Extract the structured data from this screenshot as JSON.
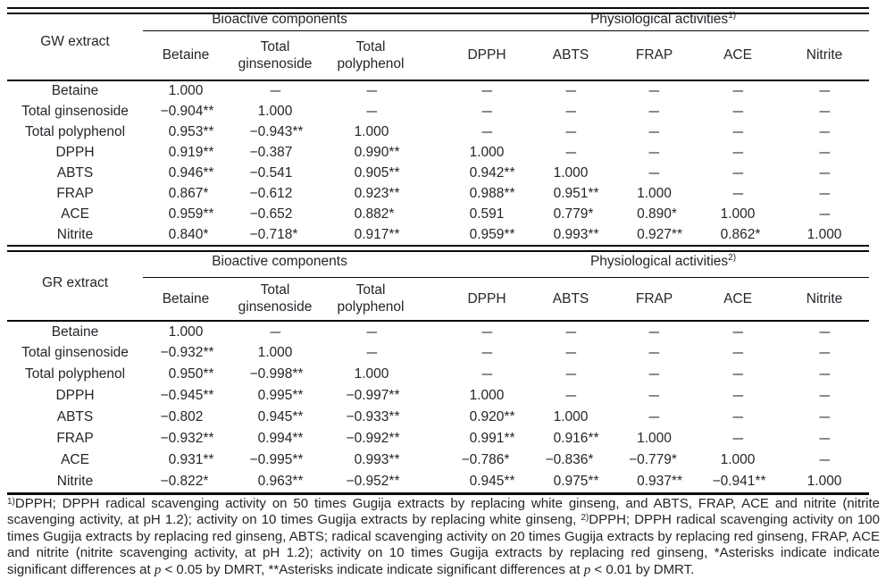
{
  "colors": {
    "text": "#24262b",
    "rule": "#0a0a0a",
    "background": "#ffffff"
  },
  "tables": [
    {
      "stub_label": "GW extract",
      "groups": [
        {
          "label": "Bioactive components",
          "sup": ""
        },
        {
          "label": "Physiological activities",
          "sup": "1)"
        }
      ],
      "col_headers": [
        "Betaine",
        "Total ginsenoside",
        "Total polyphenol",
        "DPPH",
        "ABTS",
        "FRAP",
        "ACE",
        "Nitrite"
      ],
      "rows": [
        {
          "label": "Betaine",
          "values": [
            "1.000",
            "–",
            "–",
            "–",
            "–",
            "–",
            "–",
            "–"
          ]
        },
        {
          "label": "Total ginsenoside",
          "values": [
            "−0.904**",
            "1.000",
            "–",
            "–",
            "–",
            "–",
            "–",
            "–"
          ]
        },
        {
          "label": "Total polyphenol",
          "values": [
            "0.953**",
            "−0.943**",
            "1.000",
            "–",
            "–",
            "–",
            "–",
            "–"
          ]
        },
        {
          "label": "DPPH",
          "values": [
            "0.919**",
            "−0.387",
            "0.990**",
            "1.000",
            "–",
            "–",
            "–",
            "–"
          ]
        },
        {
          "label": "ABTS",
          "values": [
            "0.946**",
            "−0.541",
            "0.905**",
            "0.942**",
            "1.000",
            "–",
            "–",
            "–"
          ]
        },
        {
          "label": "FRAP",
          "values": [
            "0.867*",
            "−0.612",
            "0.923**",
            "0.988**",
            "0.951**",
            "1.000",
            "–",
            "–"
          ]
        },
        {
          "label": "ACE",
          "values": [
            "0.959**",
            "−0.652",
            "0.882*",
            "0.591",
            "0.779*",
            "0.890*",
            "1.000",
            "–"
          ]
        },
        {
          "label": "Nitrite",
          "values": [
            "0.840*",
            "−0.718*",
            "0.917**",
            "0.959**",
            "0.993**",
            "0.927**",
            "0.862*",
            "1.000"
          ]
        }
      ]
    },
    {
      "stub_label": "GR extract",
      "groups": [
        {
          "label": "Bioactive components",
          "sup": ""
        },
        {
          "label": "Physiological activities",
          "sup": "2)"
        }
      ],
      "col_headers": [
        "Betaine",
        "Total ginsenoside",
        "Total polyphenol",
        "DPPH",
        "ABTS",
        "FRAP",
        "ACE",
        "Nitrite"
      ],
      "rows": [
        {
          "label": "Betaine",
          "values": [
            "1.000",
            "–",
            "–",
            "–",
            "–",
            "–",
            "–",
            "–"
          ]
        },
        {
          "label": "Total ginsenoside",
          "values": [
            "−0.932**",
            "1.000",
            "–",
            "–",
            "–",
            "–",
            "–",
            "–"
          ]
        },
        {
          "label": "Total polyphenol",
          "values": [
            "0.950**",
            "−0.998**",
            "1.000",
            "–",
            "–",
            "–",
            "–",
            "–"
          ]
        },
        {
          "label": "DPPH",
          "values": [
            "−0.945**",
            "0.995**",
            "−0.997**",
            "1.000",
            "–",
            "–",
            "–",
            "–"
          ]
        },
        {
          "label": "ABTS",
          "values": [
            "−0.802",
            "0.945**",
            "−0.933**",
            "0.920**",
            "1.000",
            "–",
            "–",
            "–"
          ]
        },
        {
          "label": "FRAP",
          "values": [
            "−0.932**",
            "0.994**",
            "−0.992**",
            "0.991**",
            "0.916**",
            "1.000",
            "–",
            "–"
          ]
        },
        {
          "label": "ACE",
          "values": [
            "0.931**",
            "−0.995**",
            "0.993**",
            "−0.786*",
            "−0.836*",
            "−0.779*",
            "1.000",
            "–"
          ]
        },
        {
          "label": "Nitrite",
          "values": [
            "−0.822*",
            "0.963**",
            "−0.952**",
            "0.945**",
            "0.975**",
            "0.937**",
            "−0.941**",
            "1.000"
          ]
        }
      ]
    }
  ],
  "footnote": {
    "lines": [
      [
        {
          "sup": "1)"
        },
        {
          "text": "DPPH; DPPH radical scavenging activity on 50 times Gugija extracts by replacing white ginseng, and ABTS, FRAP, ACE and nitrite (nitrite"
        }
      ],
      [
        {
          "text": "scavenging activity, at pH 1.2); activity on 10 times Gugija extracts by replacing white ginseng, "
        },
        {
          "sup": "2)"
        },
        {
          "text": "DPPH; DPPH radical scavenging activity on 100"
        }
      ],
      [
        {
          "text": "times Gugija extracts by replacing red ginseng, ABTS; radical scavenging activity on 20 times Gugija extracts by replacing red ginseng, FRAP, ACE"
        }
      ],
      [
        {
          "text": "and nitrite (nitrite scavenging activity, at pH 1.2); activity on 10 times Gugija extracts by replacing red ginseng, *Asterisks indicate indicate"
        }
      ],
      [
        {
          "text": "significant differences at "
        },
        {
          "italic": "p"
        },
        {
          "text": " < 0.05 by DMRT, **Asterisks indicate indicate significant differences at "
        },
        {
          "italic": "p"
        },
        {
          "text": " < 0.01 by DMRT."
        }
      ]
    ]
  }
}
